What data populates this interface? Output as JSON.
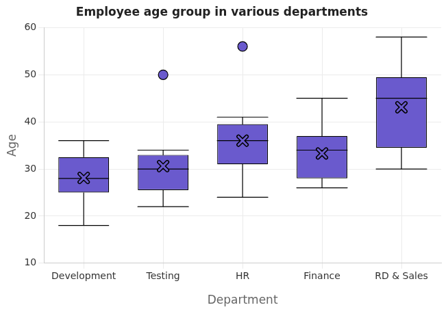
{
  "chart_data": {
    "type": "box",
    "title": "Employee age group in various departments",
    "x_label": "Department",
    "y_label": "Age",
    "categories": [
      "Development",
      "Testing",
      "HR",
      "Finance",
      "RD & Sales"
    ],
    "min": [
      18,
      22,
      24,
      26,
      30
    ],
    "q1": [
      25,
      25.5,
      31,
      28,
      34.5
    ],
    "median": [
      28,
      30,
      36,
      34,
      45
    ],
    "q3": [
      32.5,
      33,
      39.5,
      37,
      49.5
    ],
    "max": [
      36,
      34,
      41,
      45,
      58
    ],
    "mean": [
      28.1,
      30.6,
      36,
      33.3,
      43.1
    ],
    "outliers": [
      [],
      [
        50
      ],
      [
        56
      ],
      [],
      []
    ],
    "color": "#6a5acd",
    "ylim": [
      10,
      60
    ],
    "yticks": [
      10,
      20,
      30,
      40,
      50,
      60
    ],
    "grid": true
  }
}
